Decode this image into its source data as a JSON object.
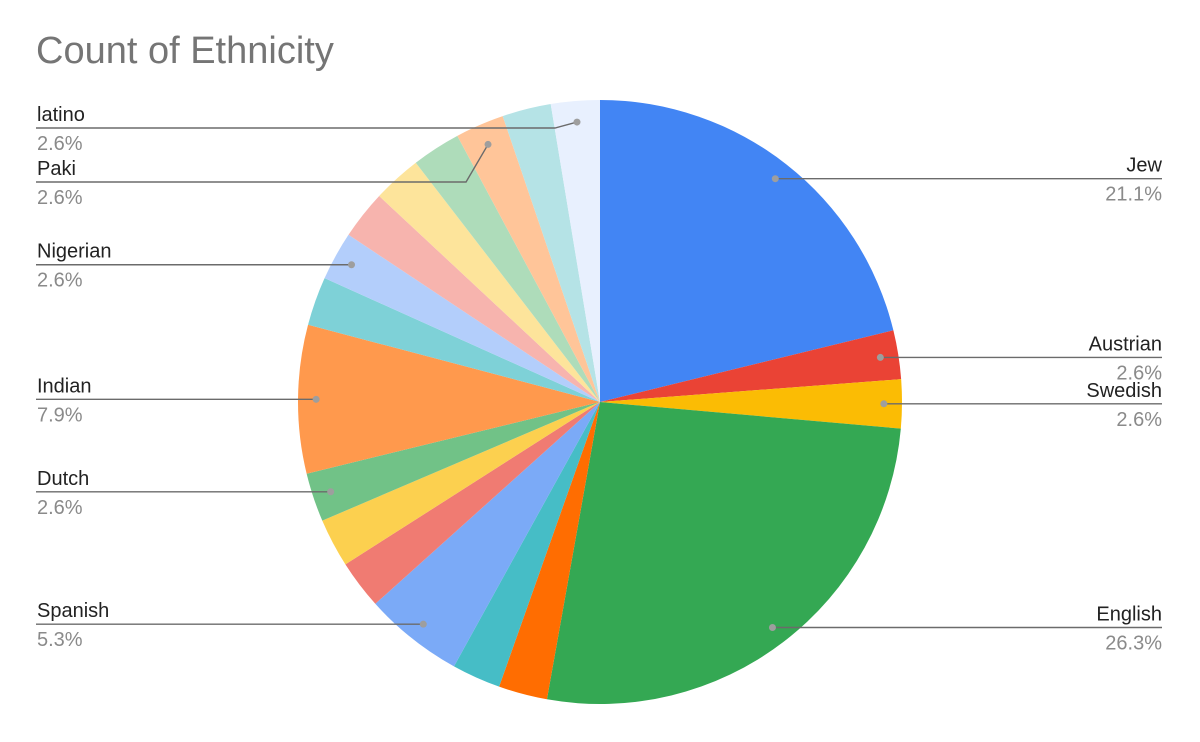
{
  "chart_data": {
    "type": "pie",
    "title": "Count of Ethnicity",
    "slices": [
      {
        "label": "Jew",
        "value": 21.1,
        "pct_text": "21.1%",
        "color": "#4285f4"
      },
      {
        "label": "Austrian",
        "value": 2.6,
        "pct_text": "2.6%",
        "color": "#ea4335"
      },
      {
        "label": "Swedish",
        "value": 2.6,
        "pct_text": "2.6%",
        "color": "#fbbc04"
      },
      {
        "label": "English",
        "value": 26.3,
        "pct_text": "26.3%",
        "color": "#34a853"
      },
      {
        "label": "",
        "value": 2.6,
        "pct_text": "",
        "color": "#ff6d01"
      },
      {
        "label": "",
        "value": 2.6,
        "pct_text": "",
        "color": "#46bdc6"
      },
      {
        "label": "Spanish",
        "value": 5.3,
        "pct_text": "5.3%",
        "color": "#7baaf7"
      },
      {
        "label": "",
        "value": 2.6,
        "pct_text": "",
        "color": "#f07b72"
      },
      {
        "label": "",
        "value": 2.6,
        "pct_text": "",
        "color": "#fcd04f"
      },
      {
        "label": "Dutch",
        "value": 2.6,
        "pct_text": "2.6%",
        "color": "#71c287"
      },
      {
        "label": "Indian",
        "value": 7.9,
        "pct_text": "7.9%",
        "color": "#ff994d"
      },
      {
        "label": "",
        "value": 2.6,
        "pct_text": "",
        "color": "#7ed1d7"
      },
      {
        "label": "Nigerian",
        "value": 2.6,
        "pct_text": "2.6%",
        "color": "#b3cefb"
      },
      {
        "label": "",
        "value": 2.6,
        "pct_text": "",
        "color": "#f7b4ae"
      },
      {
        "label": "",
        "value": 2.6,
        "pct_text": "",
        "color": "#fde49b"
      },
      {
        "label": "",
        "value": 2.6,
        "pct_text": "",
        "color": "#aedcba"
      },
      {
        "label": "Paki",
        "value": 2.6,
        "pct_text": "2.6%",
        "color": "#ffc599"
      },
      {
        "label": "",
        "value": 2.6,
        "pct_text": "",
        "color": "#b5e3e6"
      },
      {
        "label": "latino",
        "value": 2.6,
        "pct_text": "2.6%",
        "color": "#e8f0fe"
      }
    ]
  }
}
